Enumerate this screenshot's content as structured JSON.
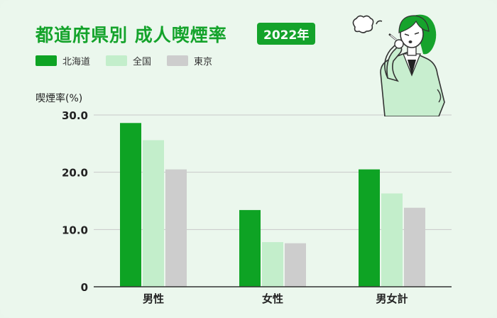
{
  "title": "都道府県別 成人喫煙率",
  "year_badge": "2022年",
  "colors": {
    "accent": "#14a32b",
    "hokkaido": "#0ea324",
    "national": "#c3eecb",
    "tokyo": "#cdcdcd",
    "background": "#ebf7ed"
  },
  "chart_data": {
    "type": "bar",
    "title": "都道府県別 成人喫煙率",
    "ylabel": "喫煙率(%)",
    "xlabel": "",
    "categories": [
      "男性",
      "女性",
      "男女計"
    ],
    "ylim": [
      0,
      30
    ],
    "yticks": [
      0,
      10,
      20,
      30
    ],
    "ytick_labels": [
      "0",
      "10.0",
      "20.0",
      "30.0"
    ],
    "grid": true,
    "legend_placement": "top-left",
    "series": [
      {
        "name": "北海道",
        "color": "#0ea324",
        "values": [
          28.6,
          13.4,
          20.5
        ]
      },
      {
        "name": "全国",
        "color": "#c3eecb",
        "values": [
          25.6,
          7.8,
          16.3
        ]
      },
      {
        "name": "東京",
        "color": "#cdcdcd",
        "values": [
          20.5,
          7.6,
          13.8
        ]
      }
    ]
  },
  "illustration": {
    "icon": "woman-smoking-illustration",
    "smoke_icon": "smoke-puff-icon"
  }
}
